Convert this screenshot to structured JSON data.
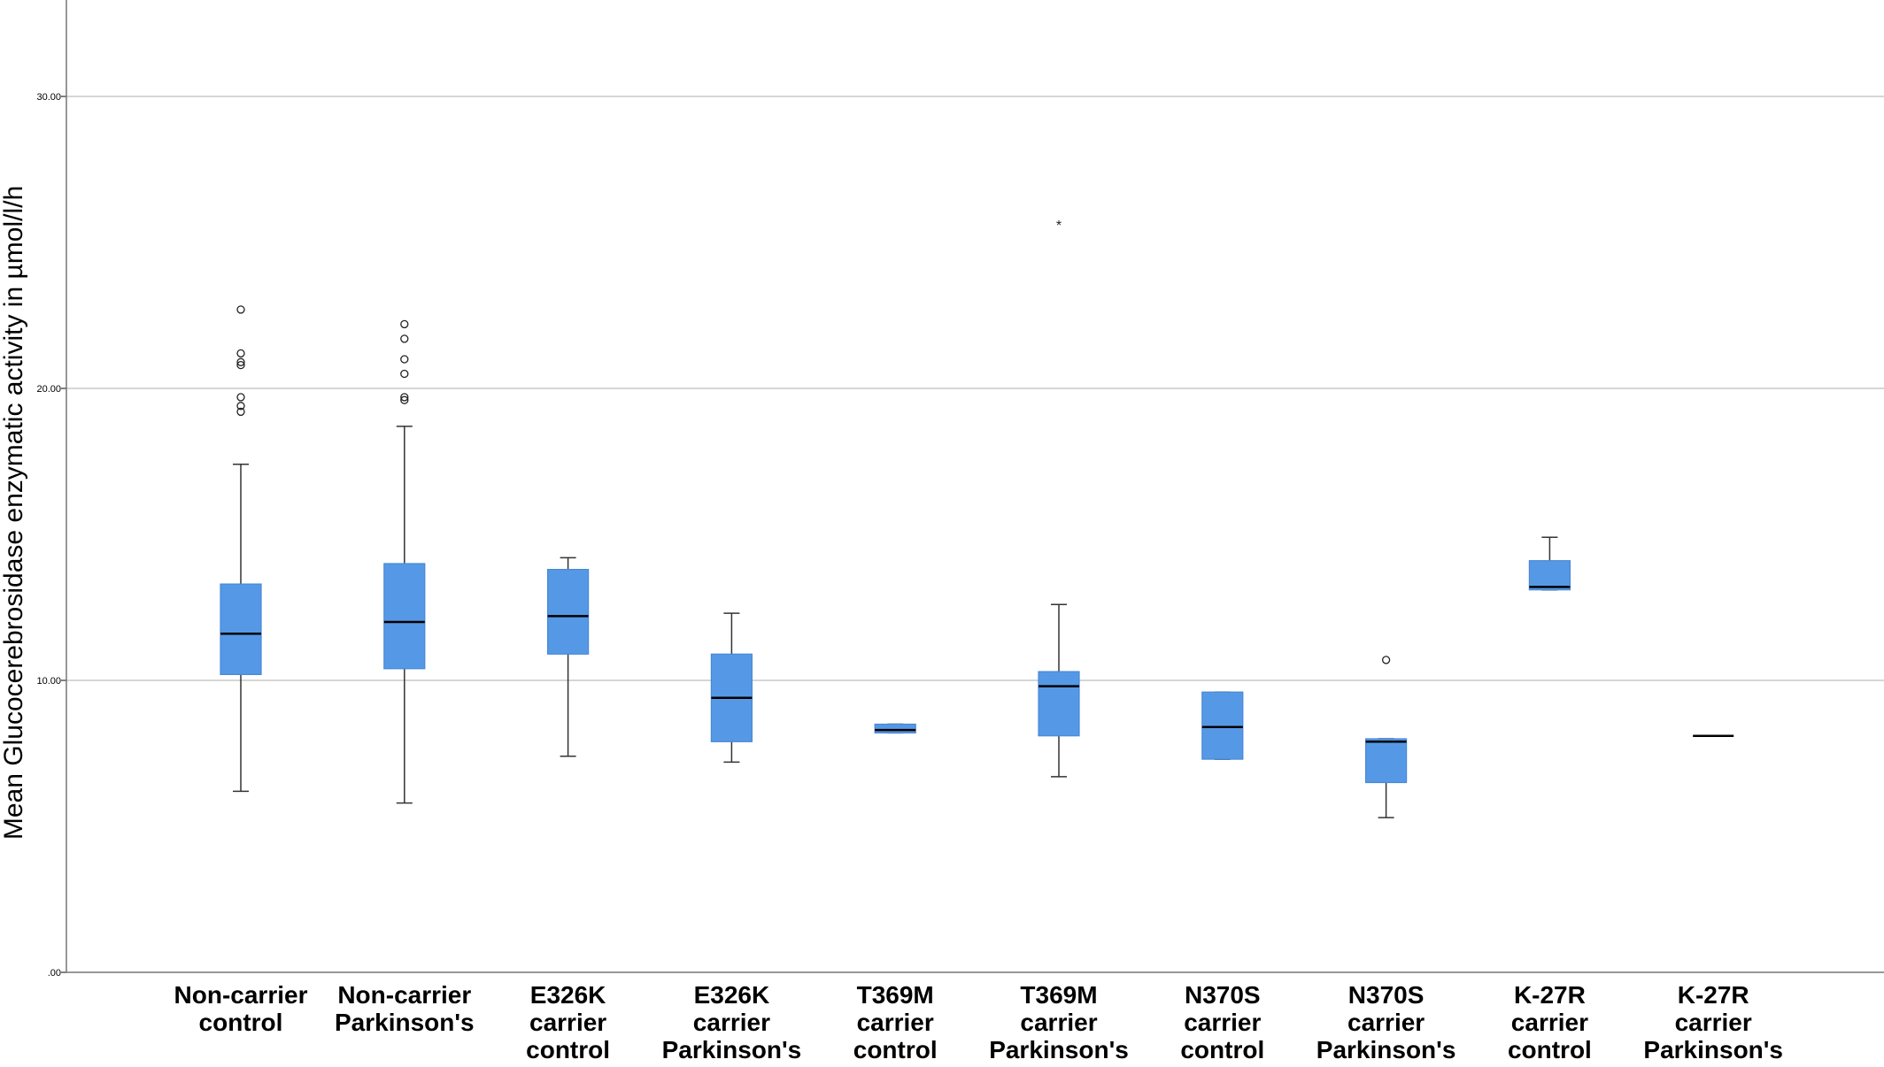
{
  "chart_data": {
    "type": "boxplot",
    "ylabel": "Mean Glucocerebrosidase enzymatic activity in µmol/l/h",
    "xlabel": "",
    "ylim": [
      0,
      33
    ],
    "yticks": [
      0,
      10,
      20,
      30
    ],
    "ytick_labels": [
      ".00",
      "10.00",
      "20.00",
      "30.00"
    ],
    "grid": true,
    "box_color": "#5599e6",
    "categories": [
      [
        "Non-carrier",
        "control"
      ],
      [
        "Non-carrier",
        "Parkinson's"
      ],
      [
        "E326K",
        "carrier",
        "control"
      ],
      [
        "E326K",
        "carrier",
        "Parkinson's"
      ],
      [
        "T369M",
        "carrier",
        "control"
      ],
      [
        "T369M",
        "carrier",
        "Parkinson's"
      ],
      [
        "N370S",
        "carrier",
        "control"
      ],
      [
        "N370S",
        "carrier",
        "Parkinson's"
      ],
      [
        "K-27R",
        "carrier",
        "control"
      ],
      [
        "K-27R",
        "carrier",
        "Parkinson's"
      ]
    ],
    "boxes": [
      {
        "min": 6.2,
        "q1": 10.2,
        "median": 11.6,
        "q3": 13.3,
        "max": 17.4,
        "outliers": [
          19.2,
          19.4,
          19.7,
          20.8,
          20.9,
          21.2,
          22.7
        ],
        "extremes": []
      },
      {
        "min": 5.8,
        "q1": 10.4,
        "median": 12.0,
        "q3": 14.0,
        "max": 18.7,
        "outliers": [
          19.6,
          19.7,
          20.5,
          21.0,
          21.7,
          22.2
        ],
        "extremes": []
      },
      {
        "min": 7.4,
        "q1": 10.9,
        "median": 12.2,
        "q3": 13.8,
        "max": 14.2,
        "outliers": [],
        "extremes": []
      },
      {
        "min": 7.2,
        "q1": 7.9,
        "median": 9.4,
        "q3": 10.9,
        "max": 12.3,
        "outliers": [],
        "extremes": []
      },
      {
        "min": 8.2,
        "q1": 8.2,
        "median": 8.3,
        "q3": 8.5,
        "max": 8.5,
        "outliers": [],
        "extremes": []
      },
      {
        "min": 6.7,
        "q1": 8.1,
        "median": 9.8,
        "q3": 10.3,
        "max": 12.6,
        "outliers": [],
        "extremes": [
          25.6
        ]
      },
      {
        "min": 7.3,
        "q1": 7.3,
        "median": 8.4,
        "q3": 9.6,
        "max": 9.6,
        "outliers": [],
        "extremes": []
      },
      {
        "min": 5.3,
        "q1": 6.5,
        "median": 7.9,
        "q3": 8.0,
        "max": 8.0,
        "outliers": [
          10.7
        ],
        "extremes": []
      },
      {
        "min": 13.1,
        "q1": 13.1,
        "median": 13.2,
        "q3": 14.1,
        "max": 14.9,
        "outliers": [],
        "extremes": []
      },
      {
        "min": 8.1,
        "q1": 8.1,
        "median": 8.1,
        "q3": 8.1,
        "max": 8.1,
        "outliers": [],
        "extremes": []
      }
    ]
  }
}
